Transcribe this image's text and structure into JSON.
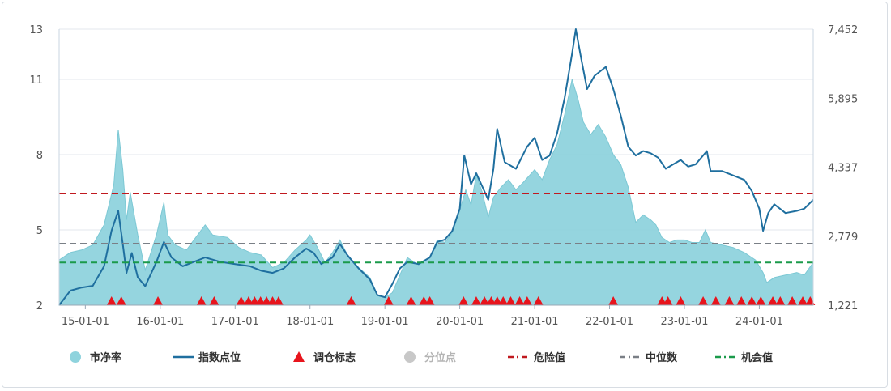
{
  "chart_data": {
    "type": "area",
    "x_tick_labels": [
      "15-01-01",
      "16-01-01",
      "17-01-01",
      "18-01-01",
      "19-01-01",
      "20-01-01",
      "21-01-01",
      "22-01-01",
      "23-01-01",
      "24-01-01"
    ],
    "x_range": [
      2014.65,
      2024.72
    ],
    "left_axis": {
      "ticks": [
        2,
        5,
        8,
        11,
        13
      ],
      "ylim": [
        2,
        13
      ]
    },
    "right_axis": {
      "ticks": [
        "1,221",
        "2,779",
        "4,337",
        "5,895",
        "7,452"
      ],
      "ylim": [
        1221,
        7452
      ]
    },
    "reference_lines": [
      {
        "name": "危险值",
        "value": 6.45,
        "color": "#c0191f"
      },
      {
        "name": "中位数",
        "value": 4.45,
        "color": "#7a7f86"
      },
      {
        "name": "机会值",
        "value": 3.7,
        "color": "#1a9a4a"
      }
    ],
    "series": [
      {
        "name": "市净率",
        "type": "area",
        "axis": "left",
        "color": "#8fd3dd",
        "points": [
          [
            2014.65,
            3.8
          ],
          [
            2014.8,
            4.1
          ],
          [
            2014.95,
            4.2
          ],
          [
            2015.1,
            4.4
          ],
          [
            2015.25,
            5.2
          ],
          [
            2015.38,
            6.8
          ],
          [
            2015.44,
            9.0
          ],
          [
            2015.5,
            7.4
          ],
          [
            2015.55,
            5.4
          ],
          [
            2015.6,
            6.5
          ],
          [
            2015.7,
            4.8
          ],
          [
            2015.8,
            3.4
          ],
          [
            2015.95,
            4.8
          ],
          [
            2016.05,
            6.1
          ],
          [
            2016.1,
            4.8
          ],
          [
            2016.2,
            4.4
          ],
          [
            2016.35,
            4.2
          ],
          [
            2016.5,
            4.8
          ],
          [
            2016.6,
            5.2
          ],
          [
            2016.7,
            4.8
          ],
          [
            2016.9,
            4.7
          ],
          [
            2017.05,
            4.3
          ],
          [
            2017.2,
            4.1
          ],
          [
            2017.35,
            4.0
          ],
          [
            2017.5,
            3.5
          ],
          [
            2017.65,
            3.7
          ],
          [
            2017.8,
            4.2
          ],
          [
            2017.95,
            4.6
          ],
          [
            2018.0,
            4.8
          ],
          [
            2018.1,
            4.3
          ],
          [
            2018.2,
            3.7
          ],
          [
            2018.3,
            4.1
          ],
          [
            2018.4,
            4.6
          ],
          [
            2018.5,
            4.0
          ],
          [
            2018.65,
            3.5
          ],
          [
            2018.8,
            3.1
          ],
          [
            2018.9,
            2.4
          ],
          [
            2019.0,
            2.3
          ],
          [
            2019.1,
            2.5
          ],
          [
            2019.2,
            3.2
          ],
          [
            2019.3,
            3.9
          ],
          [
            2019.45,
            3.6
          ],
          [
            2019.6,
            3.9
          ],
          [
            2019.7,
            4.6
          ],
          [
            2019.8,
            4.5
          ],
          [
            2019.9,
            4.9
          ],
          [
            2020.0,
            5.8
          ],
          [
            2020.08,
            6.6
          ],
          [
            2020.15,
            6.0
          ],
          [
            2020.22,
            7.2
          ],
          [
            2020.3,
            6.5
          ],
          [
            2020.38,
            5.5
          ],
          [
            2020.45,
            6.3
          ],
          [
            2020.55,
            6.7
          ],
          [
            2020.65,
            7.0
          ],
          [
            2020.75,
            6.6
          ],
          [
            2020.85,
            6.9
          ],
          [
            2021.0,
            7.4
          ],
          [
            2021.1,
            7.0
          ],
          [
            2021.2,
            7.8
          ],
          [
            2021.3,
            8.4
          ],
          [
            2021.4,
            9.6
          ],
          [
            2021.5,
            11.0
          ],
          [
            2021.58,
            10.2
          ],
          [
            2021.65,
            9.3
          ],
          [
            2021.75,
            8.8
          ],
          [
            2021.85,
            9.2
          ],
          [
            2021.95,
            8.7
          ],
          [
            2022.05,
            8.0
          ],
          [
            2022.15,
            7.6
          ],
          [
            2022.25,
            6.7
          ],
          [
            2022.35,
            5.3
          ],
          [
            2022.45,
            5.6
          ],
          [
            2022.55,
            5.4
          ],
          [
            2022.62,
            5.2
          ],
          [
            2022.7,
            4.7
          ],
          [
            2022.8,
            4.5
          ],
          [
            2022.9,
            4.6
          ],
          [
            2023.0,
            4.6
          ],
          [
            2023.1,
            4.5
          ],
          [
            2023.2,
            4.5
          ],
          [
            2023.28,
            5.0
          ],
          [
            2023.35,
            4.5
          ],
          [
            2023.5,
            4.4
          ],
          [
            2023.65,
            4.3
          ],
          [
            2023.8,
            4.1
          ],
          [
            2023.95,
            3.8
          ],
          [
            2024.05,
            3.3
          ],
          [
            2024.1,
            2.9
          ],
          [
            2024.2,
            3.1
          ],
          [
            2024.35,
            3.2
          ],
          [
            2024.5,
            3.3
          ],
          [
            2024.6,
            3.2
          ],
          [
            2024.72,
            3.7
          ]
        ]
      },
      {
        "name": "指数点位",
        "type": "line",
        "axis": "right",
        "color": "#1f6f9f",
        "points": [
          [
            2014.65,
            1221
          ],
          [
            2014.8,
            1550
          ],
          [
            2014.95,
            1620
          ],
          [
            2015.1,
            1660
          ],
          [
            2015.25,
            2100
          ],
          [
            2015.35,
            2900
          ],
          [
            2015.44,
            3350
          ],
          [
            2015.5,
            2600
          ],
          [
            2015.55,
            1950
          ],
          [
            2015.62,
            2400
          ],
          [
            2015.7,
            1850
          ],
          [
            2015.8,
            1650
          ],
          [
            2015.95,
            2200
          ],
          [
            2016.05,
            2650
          ],
          [
            2016.15,
            2300
          ],
          [
            2016.3,
            2100
          ],
          [
            2016.45,
            2200
          ],
          [
            2016.6,
            2300
          ],
          [
            2016.8,
            2200
          ],
          [
            2017.0,
            2150
          ],
          [
            2017.2,
            2100
          ],
          [
            2017.35,
            2000
          ],
          [
            2017.5,
            1950
          ],
          [
            2017.65,
            2050
          ],
          [
            2017.8,
            2300
          ],
          [
            2017.95,
            2500
          ],
          [
            2018.05,
            2400
          ],
          [
            2018.15,
            2150
          ],
          [
            2018.3,
            2300
          ],
          [
            2018.4,
            2600
          ],
          [
            2018.5,
            2350
          ],
          [
            2018.65,
            2050
          ],
          [
            2018.8,
            1800
          ],
          [
            2018.9,
            1450
          ],
          [
            2019.0,
            1400
          ],
          [
            2019.1,
            1700
          ],
          [
            2019.2,
            2050
          ],
          [
            2019.3,
            2200
          ],
          [
            2019.45,
            2150
          ],
          [
            2019.6,
            2300
          ],
          [
            2019.7,
            2650
          ],
          [
            2019.8,
            2700
          ],
          [
            2019.9,
            2900
          ],
          [
            2020.0,
            3400
          ],
          [
            2020.06,
            4600
          ],
          [
            2020.15,
            3950
          ],
          [
            2020.22,
            4200
          ],
          [
            2020.3,
            3900
          ],
          [
            2020.38,
            3600
          ],
          [
            2020.45,
            4300
          ],
          [
            2020.5,
            5200
          ],
          [
            2020.6,
            4450
          ],
          [
            2020.75,
            4300
          ],
          [
            2020.9,
            4800
          ],
          [
            2021.0,
            5000
          ],
          [
            2021.1,
            4500
          ],
          [
            2021.2,
            4600
          ],
          [
            2021.3,
            5100
          ],
          [
            2021.4,
            5900
          ],
          [
            2021.5,
            6900
          ],
          [
            2021.55,
            7452
          ],
          [
            2021.62,
            6800
          ],
          [
            2021.7,
            6100
          ],
          [
            2021.8,
            6400
          ],
          [
            2021.95,
            6600
          ],
          [
            2022.05,
            6100
          ],
          [
            2022.15,
            5500
          ],
          [
            2022.25,
            4800
          ],
          [
            2022.35,
            4600
          ],
          [
            2022.45,
            4700
          ],
          [
            2022.55,
            4650
          ],
          [
            2022.65,
            4550
          ],
          [
            2022.75,
            4300
          ],
          [
            2022.85,
            4400
          ],
          [
            2022.95,
            4500
          ],
          [
            2023.05,
            4350
          ],
          [
            2023.15,
            4400
          ],
          [
            2023.3,
            4700
          ],
          [
            2023.35,
            4250
          ],
          [
            2023.5,
            4250
          ],
          [
            2023.65,
            4150
          ],
          [
            2023.8,
            4050
          ],
          [
            2023.9,
            3800
          ],
          [
            2024.0,
            3400
          ],
          [
            2024.05,
            2900
          ],
          [
            2024.12,
            3300
          ],
          [
            2024.2,
            3500
          ],
          [
            2024.35,
            3300
          ],
          [
            2024.5,
            3350
          ],
          [
            2024.6,
            3400
          ],
          [
            2024.72,
            3600
          ]
        ]
      }
    ],
    "markers": {
      "name": "调仓标志",
      "color": "#e8141c",
      "x": [
        2015.35,
        2015.48,
        2015.97,
        2016.55,
        2016.72,
        2017.08,
        2017.18,
        2017.26,
        2017.34,
        2017.42,
        2017.5,
        2017.58,
        2018.55,
        2019.05,
        2019.35,
        2019.52,
        2019.6,
        2020.05,
        2020.22,
        2020.33,
        2020.42,
        2020.5,
        2020.58,
        2020.68,
        2020.8,
        2020.9,
        2021.05,
        2022.05,
        2022.7,
        2022.78,
        2022.95,
        2023.25,
        2023.42,
        2023.6,
        2023.76,
        2023.9,
        2024.02,
        2024.18,
        2024.28,
        2024.44,
        2024.58,
        2024.68
      ]
    },
    "legend": [
      {
        "name": "市净率",
        "symbol": "circle",
        "color": "#8fd3dd"
      },
      {
        "name": "指数点位",
        "symbol": "line",
        "color": "#1f6f9f"
      },
      {
        "name": "调仓标志",
        "symbol": "triangle",
        "color": "#e8141c"
      },
      {
        "name": "分位点",
        "symbol": "circle",
        "color": "#c8c8c8",
        "muted": true
      },
      {
        "name": "危险值",
        "symbol": "dashdot",
        "color": "#c0191f"
      },
      {
        "name": "中位数",
        "symbol": "dashdot",
        "color": "#7a7f86"
      },
      {
        "name": "机会值",
        "symbol": "dashdot",
        "color": "#1a9a4a"
      }
    ]
  }
}
